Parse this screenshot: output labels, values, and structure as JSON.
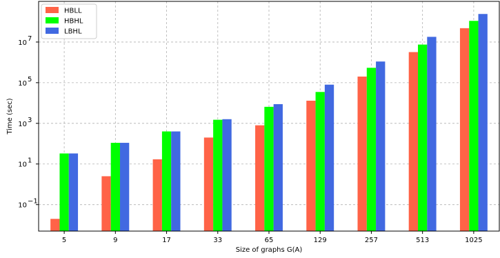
{
  "chart_data": {
    "type": "bar",
    "scale": "log",
    "xlabel": "Size of graphs G(A)",
    "ylabel": "Time (sec)",
    "categories": [
      "5",
      "9",
      "17",
      "33",
      "65",
      "129",
      "257",
      "513",
      "1025"
    ],
    "series": [
      {
        "name": "HBLL",
        "color": "#ff6347",
        "values": [
          0.02,
          2.5,
          17,
          200,
          800,
          13000,
          200000,
          3200000,
          48000000
        ]
      },
      {
        "name": "HBHL",
        "color": "#00ff00",
        "values": [
          33,
          110,
          400,
          1500,
          6500,
          35000,
          540000,
          7500000,
          110000000
        ]
      },
      {
        "name": "LBHL",
        "color": "#4169e1",
        "values": [
          33,
          110,
          400,
          1600,
          8800,
          80000,
          1100000,
          18000000,
          240000000
        ]
      }
    ],
    "ylim": [
      0.005,
      1000000000
    ],
    "y_ticks": [
      {
        "label": "10",
        "exp": "−1",
        "value": 0.1
      },
      {
        "label": "10",
        "exp": "1",
        "value": 10
      },
      {
        "label": "10",
        "exp": "3",
        "value": 1000
      },
      {
        "label": "10",
        "exp": "5",
        "value": 100000
      },
      {
        "label": "10",
        "exp": "7",
        "value": 10000000
      }
    ],
    "grid": true,
    "legend": "top-left"
  }
}
